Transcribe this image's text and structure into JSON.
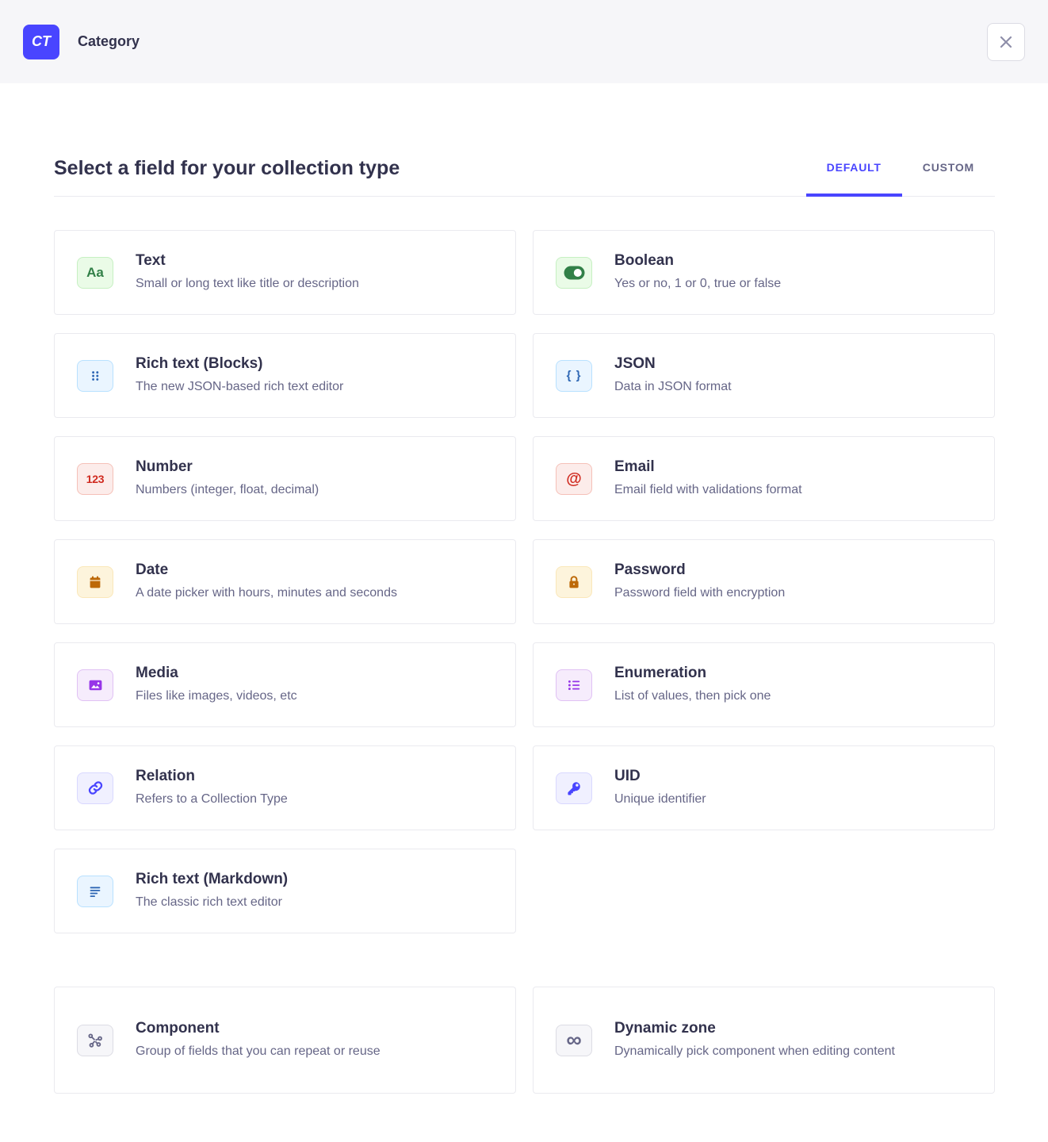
{
  "header": {
    "badge": "CT",
    "title": "Category"
  },
  "page": {
    "heading": "Select a field for your collection type",
    "tabs": [
      {
        "label": "DEFAULT",
        "active": true
      },
      {
        "label": "CUSTOM",
        "active": false
      }
    ]
  },
  "colors": {
    "primary": "#4945ff",
    "title_text": "#32324d",
    "muted_text": "#666687",
    "card_border": "#eaeaef",
    "titlebar_bg": "#f6f6f9"
  },
  "fields": [
    {
      "id": "text",
      "title": "Text",
      "description": "Small or long text like title or description",
      "icon": "text-icon",
      "glyph": "Aa",
      "fg": "#328048",
      "bg": "#eafbe7",
      "border": "#c6f0c2"
    },
    {
      "id": "boolean",
      "title": "Boolean",
      "description": "Yes or no, 1 or 0, true or false",
      "icon": "boolean-toggle-icon",
      "glyph": null,
      "fg": "#328048",
      "bg": "#eafbe7",
      "border": "#c6f0c2"
    },
    {
      "id": "richtext-blocks",
      "title": "Rich text (Blocks)",
      "description": "The new JSON-based rich text editor",
      "icon": "blocks-dots-icon",
      "glyph": null,
      "fg": "#2d66b4",
      "bg": "#eaf5ff",
      "border": "#b8e1ff"
    },
    {
      "id": "json",
      "title": "JSON",
      "description": "Data in JSON format",
      "icon": "json-braces-icon",
      "glyph": "{ }",
      "fg": "#2d66b4",
      "bg": "#eaf5ff",
      "border": "#b8e1ff"
    },
    {
      "id": "number",
      "title": "Number",
      "description": "Numbers (integer, float, decimal)",
      "icon": "number-icon",
      "glyph": "123",
      "fg": "#d02b20",
      "bg": "#fcecea",
      "border": "#f5c0b8"
    },
    {
      "id": "email",
      "title": "Email",
      "description": "Email field with validations format",
      "icon": "email-at-icon",
      "glyph": "@",
      "fg": "#d02b20",
      "bg": "#fcecea",
      "border": "#f5c0b8"
    },
    {
      "id": "date",
      "title": "Date",
      "description": "A date picker with hours, minutes and seconds",
      "icon": "calendar-icon",
      "glyph": null,
      "fg": "#bd6908",
      "bg": "#fdf4dc",
      "border": "#fae7b9"
    },
    {
      "id": "password",
      "title": "Password",
      "description": "Password field with encryption",
      "icon": "lock-icon",
      "glyph": null,
      "fg": "#bd6908",
      "bg": "#fdf4dc",
      "border": "#fae7b9"
    },
    {
      "id": "media",
      "title": "Media",
      "description": "Files like images, videos, etc",
      "icon": "picture-icon",
      "glyph": null,
      "fg": "#9736e8",
      "bg": "#f6ecfc",
      "border": "#e0c1f4"
    },
    {
      "id": "enumeration",
      "title": "Enumeration",
      "description": "List of values, then pick one",
      "icon": "bullet-list-icon",
      "glyph": null,
      "fg": "#9736e8",
      "bg": "#f6ecfc",
      "border": "#e0c1f4"
    },
    {
      "id": "relation",
      "title": "Relation",
      "description": "Refers to a Collection Type",
      "icon": "link-icon",
      "glyph": null,
      "fg": "#4945ff",
      "bg": "#f0f0ff",
      "border": "#d9d8ff"
    },
    {
      "id": "uid",
      "title": "UID",
      "description": "Unique identifier",
      "icon": "key-icon",
      "glyph": null,
      "fg": "#4945ff",
      "bg": "#f0f0ff",
      "border": "#d9d8ff"
    },
    {
      "id": "richtext-markdown",
      "title": "Rich text (Markdown)",
      "description": "The classic rich text editor",
      "icon": "paragraph-lines-icon",
      "glyph": null,
      "fg": "#2d66b4",
      "bg": "#eaf5ff",
      "border": "#b8e1ff"
    }
  ],
  "advanced_fields": [
    {
      "id": "component",
      "title": "Component",
      "description": "Group of fields that you can repeat or reuse",
      "icon": "component-nodes-icon",
      "glyph": null,
      "fg": "#666687",
      "bg": "#f6f6f9",
      "border": "#dcdce4"
    },
    {
      "id": "dynamic-zone",
      "title": "Dynamic zone",
      "description": "Dynamically pick component when editing content",
      "icon": "infinity-icon",
      "glyph": "∞",
      "fg": "#666687",
      "bg": "#f6f6f9",
      "border": "#dcdce4"
    }
  ]
}
